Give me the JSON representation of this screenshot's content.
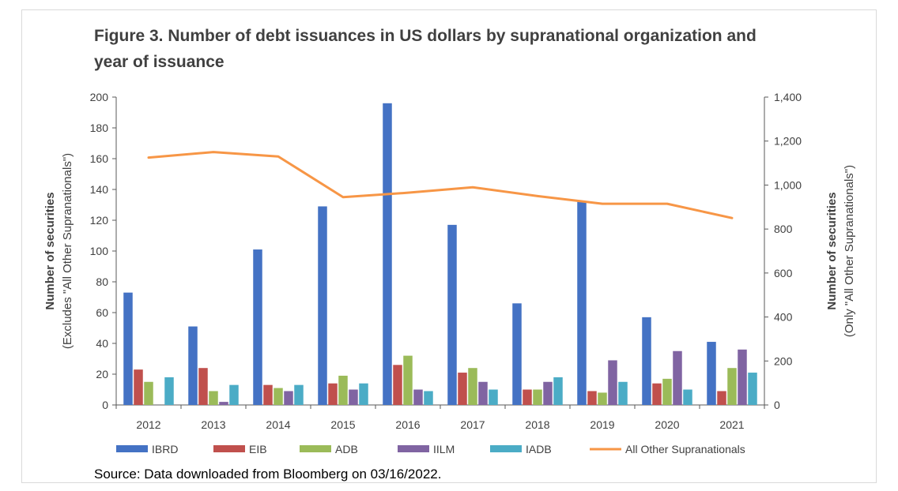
{
  "title": "Figure 3. Number of debt issuances in US dollars by supranational organization and\nyear of issuance",
  "source": "Source: Data downloaded from Bloomberg on 03/16/2022.",
  "chart_data": {
    "type": "bar",
    "categories": [
      "2012",
      "2013",
      "2014",
      "2015",
      "2016",
      "2017",
      "2018",
      "2019",
      "2020",
      "2021"
    ],
    "series": [
      {
        "name": "IBRD",
        "color": "#4472c4",
        "axis": "left",
        "values": [
          73,
          51,
          101,
          129,
          196,
          117,
          66,
          132,
          57,
          41
        ]
      },
      {
        "name": "EIB",
        "color": "#c0504d",
        "axis": "left",
        "values": [
          23,
          24,
          13,
          14,
          26,
          21,
          10,
          9,
          14,
          9
        ]
      },
      {
        "name": "ADB",
        "color": "#9bbb59",
        "axis": "left",
        "values": [
          15,
          9,
          11,
          19,
          32,
          24,
          10,
          8,
          17,
          24
        ]
      },
      {
        "name": "IILM",
        "color": "#8064a2",
        "axis": "left",
        "values": [
          0,
          2,
          9,
          10,
          10,
          15,
          15,
          29,
          35,
          36
        ]
      },
      {
        "name": "IADB",
        "color": "#4bacc6",
        "axis": "left",
        "values": [
          18,
          13,
          13,
          14,
          9,
          10,
          18,
          15,
          10,
          21
        ]
      }
    ],
    "line_series": {
      "name": "All Other Supranationals",
      "type": "line",
      "color": "#f79646",
      "axis": "right",
      "values": [
        1125,
        1150,
        1130,
        945,
        965,
        990,
        950,
        915,
        915,
        850
      ]
    },
    "left_axis": {
      "label_line1": "Number of securities",
      "label_line2": "(Excludes \"All Other Supranationals\")",
      "ylim": [
        0,
        200
      ],
      "ticks": [
        0,
        20,
        40,
        60,
        80,
        100,
        120,
        140,
        160,
        180,
        200
      ],
      "tick_labels": [
        "0",
        "20",
        "40",
        "60",
        "80",
        "100",
        "120",
        "140",
        "160",
        "180",
        "200"
      ]
    },
    "right_axis": {
      "label_line1": "Number of securities",
      "label_line2": "(Only \"All Other Supranationals\")",
      "ylim": [
        0,
        1400
      ],
      "ticks": [
        0,
        200,
        400,
        600,
        800,
        1000,
        1200,
        1400
      ],
      "tick_labels": [
        "0",
        "200",
        "400",
        "600",
        "800",
        "1,000",
        "1,200",
        "1,400"
      ]
    },
    "grid": false,
    "legend": "bottom"
  }
}
